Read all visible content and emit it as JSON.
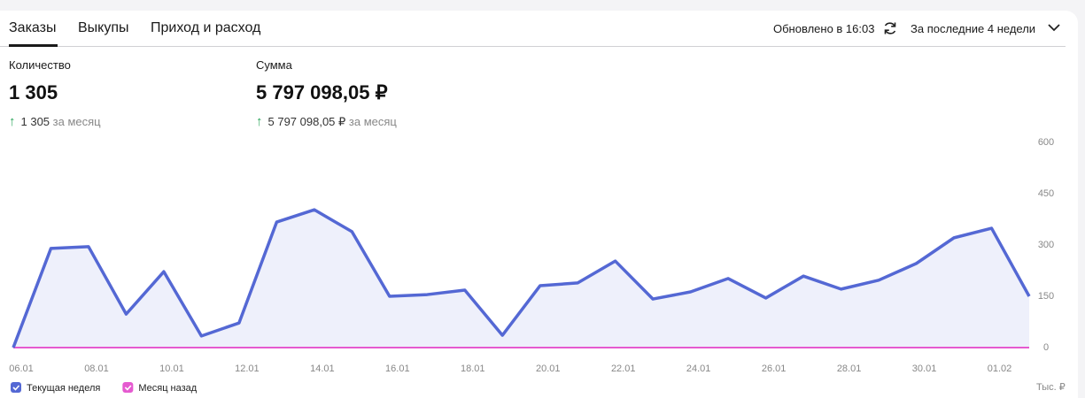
{
  "tabs": [
    "Заказы",
    "Выкупы",
    "Приход и расход"
  ],
  "updated": "Обновлено в 16:03",
  "period": "За последние 4 недели",
  "metrics": [
    {
      "label": "Количество",
      "value": "1 305",
      "change": "1 305",
      "change_note": "за месяц"
    },
    {
      "label": "Сумма",
      "value": "5 797 098,05 ₽",
      "change": "5 797 098,05 ₽",
      "change_note": "за месяц"
    }
  ],
  "chart_data": {
    "type": "line",
    "categories": [
      "06.01",
      null,
      "08.01",
      null,
      "10.01",
      null,
      "12.01",
      null,
      "14.01",
      null,
      "16.01",
      null,
      "18.01",
      null,
      "20.01",
      null,
      "22.01",
      null,
      "24.01",
      null,
      "26.01",
      null,
      "28.01",
      null,
      "30.01",
      null,
      "01.02",
      null
    ],
    "series": [
      {
        "name": "Текущая неделя",
        "color": "#5468d4",
        "values": [
          0,
          290,
          295,
          98,
          222,
          34,
          72,
          367,
          403,
          339,
          150,
          155,
          168,
          36,
          181,
          189,
          253,
          142,
          163,
          202,
          145,
          209,
          171,
          197,
          246,
          321,
          349,
          150
        ]
      },
      {
        "name": "Месяц назад",
        "color": "#e55ad0",
        "values": [
          0,
          0,
          0,
          0,
          0,
          0,
          0,
          0,
          0,
          0,
          0,
          0,
          0,
          0,
          0,
          0,
          0,
          0,
          0,
          0,
          0,
          0,
          0,
          0,
          0,
          0,
          0,
          0
        ]
      }
    ],
    "ylim": [
      0,
      600
    ],
    "yticks": [
      0,
      150,
      300,
      450,
      600
    ],
    "y_unit": "Тыс. ₽",
    "area_fill": "#eef0fb"
  }
}
